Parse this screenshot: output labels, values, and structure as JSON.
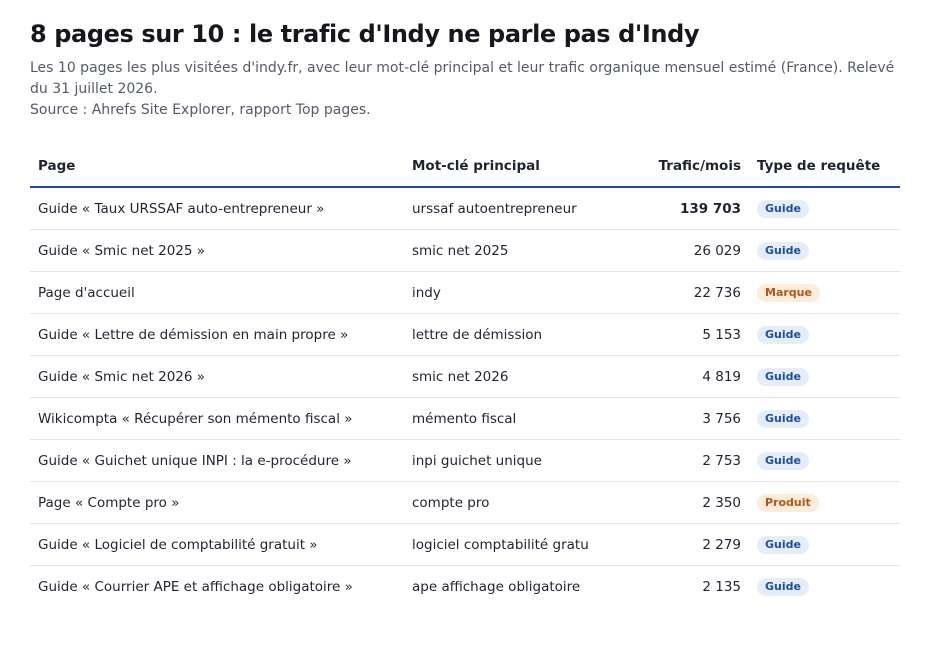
{
  "header": {
    "title": "8 pages sur 10 : le trafic d'Indy ne parle pas d'Indy",
    "subtitle": "Les 10 pages les plus visitées d'indy.fr, avec leur mot-clé principal et leur trafic organique mensuel estimé (France). Relevé du 31 juillet 2026.",
    "source": "Source : Ahrefs Site Explorer, rapport Top pages."
  },
  "table": {
    "columns": {
      "page": "Page",
      "keyword": "Mot-clé principal",
      "traffic": "Trafic/mois",
      "type": "Type de requête"
    },
    "rows": [
      {
        "page": "Guide « Taux URSSAF auto-entrepreneur »",
        "keyword": "urssaf autoentrepreneur",
        "traffic": "139 703",
        "type": "Guide",
        "type_kind": "guide",
        "highlight": true
      },
      {
        "page": "Guide « Smic net 2025 »",
        "keyword": "smic net 2025",
        "traffic": "26 029",
        "type": "Guide",
        "type_kind": "guide"
      },
      {
        "page": "Page d'accueil",
        "keyword": "indy",
        "traffic": "22 736",
        "type": "Marque",
        "type_kind": "marque"
      },
      {
        "page": "Guide « Lettre de démission en main propre »",
        "keyword": "lettre de démission",
        "traffic": "5 153",
        "type": "Guide",
        "type_kind": "guide"
      },
      {
        "page": "Guide « Smic net 2026 »",
        "keyword": "smic net 2026",
        "traffic": "4 819",
        "type": "Guide",
        "type_kind": "guide"
      },
      {
        "page": "Wikicompta « Récupérer son mémento fiscal »",
        "keyword": "mémento fiscal",
        "traffic": "3 756",
        "type": "Guide",
        "type_kind": "guide"
      },
      {
        "page": "Guide « Guichet unique INPI : la e-procédure »",
        "keyword": "inpi guichet unique",
        "traffic": "2 753",
        "type": "Guide",
        "type_kind": "guide"
      },
      {
        "page": "Page « Compte pro »",
        "keyword": "compte pro",
        "traffic": "2 350",
        "type": "Produit",
        "type_kind": "produit"
      },
      {
        "page": "Guide « Logiciel de comptabilité gratuit »",
        "keyword": "logiciel comptabilité gratuit",
        "traffic": "2 279",
        "type": "Guide",
        "type_kind": "guide"
      },
      {
        "page": "Guide « Courrier APE et affichage obligatoire »",
        "keyword": "ape affichage obligatoire",
        "traffic": "2 135",
        "type": "Guide",
        "type_kind": "guide"
      }
    ]
  },
  "colors": {
    "header_rule": "#1f4f9a",
    "guide_badge_bg": "#e6edf8",
    "guide_badge_text": "#1d4fa3",
    "marque_badge_bg": "#fbecdc",
    "marque_badge_text": "#b3561a"
  }
}
